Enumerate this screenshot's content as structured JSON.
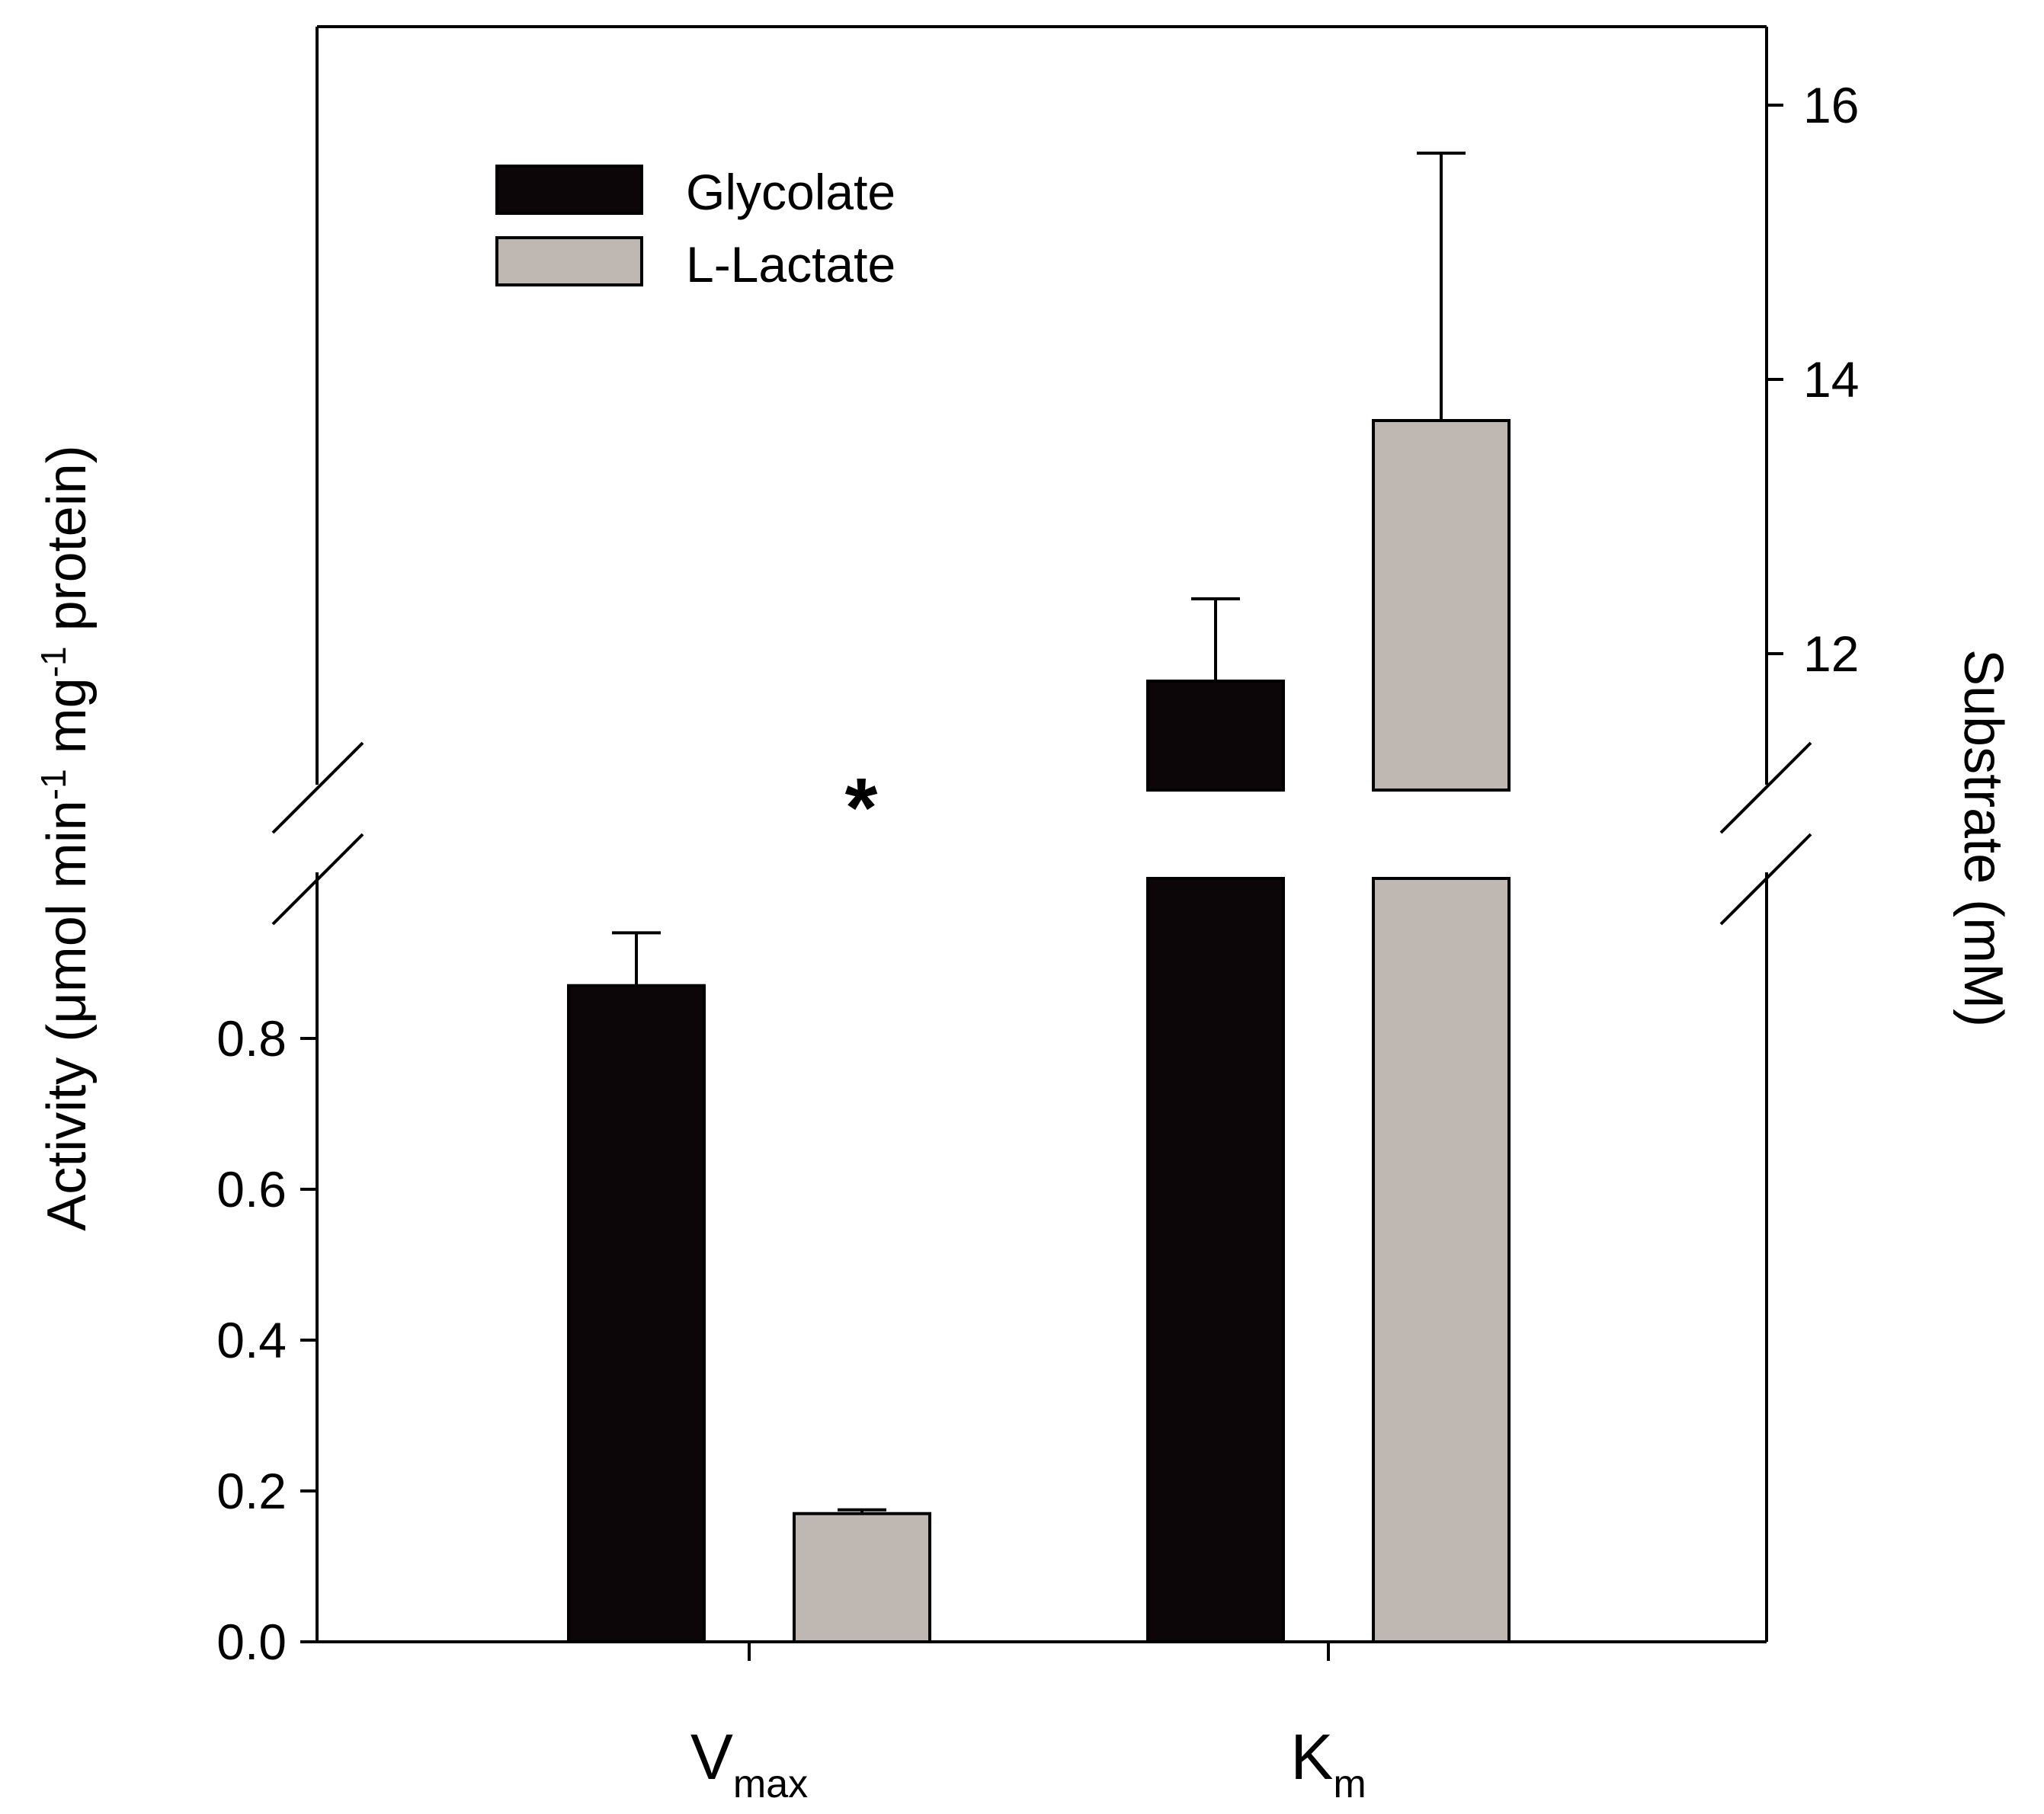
{
  "chart_data": {
    "type": "bar",
    "categories": [
      {
        "main": "V",
        "sub": "max"
      },
      {
        "main": "K",
        "sub": "m"
      }
    ],
    "series": [
      {
        "name": "Glycolate",
        "color": "#0c0609",
        "values": [
          0.87,
          11.8
        ],
        "errors": [
          0.07,
          0.6
        ]
      },
      {
        "name": "L-Lactate",
        "color": "#bfb7b2",
        "values": [
          0.17,
          13.7
        ],
        "errors": [
          0.005,
          1.95
        ]
      }
    ],
    "left_axis": {
      "label": "Activity (μmol min-1 mg-1 protein)",
      "label_parts": [
        "Activity (μmol min",
        "-1",
        " mg",
        "-1",
        " protein)"
      ],
      "range": [
        0,
        0.96
      ],
      "ticks": [
        "0.0",
        "0.2",
        "0.4",
        "0.6",
        "0.8"
      ],
      "tick_values": [
        0,
        0.2,
        0.4,
        0.6,
        0.8
      ],
      "applies_to": "V max"
    },
    "right_axis": {
      "label": "Substrate (mM)",
      "range": [
        11,
        16.6
      ],
      "ticks": [
        "12",
        "14",
        "16"
      ],
      "tick_values": [
        12,
        14,
        16
      ],
      "applies_to": "K m",
      "axis_break": true
    },
    "annotation": "*",
    "legend_position": "top-left",
    "grid": false
  }
}
